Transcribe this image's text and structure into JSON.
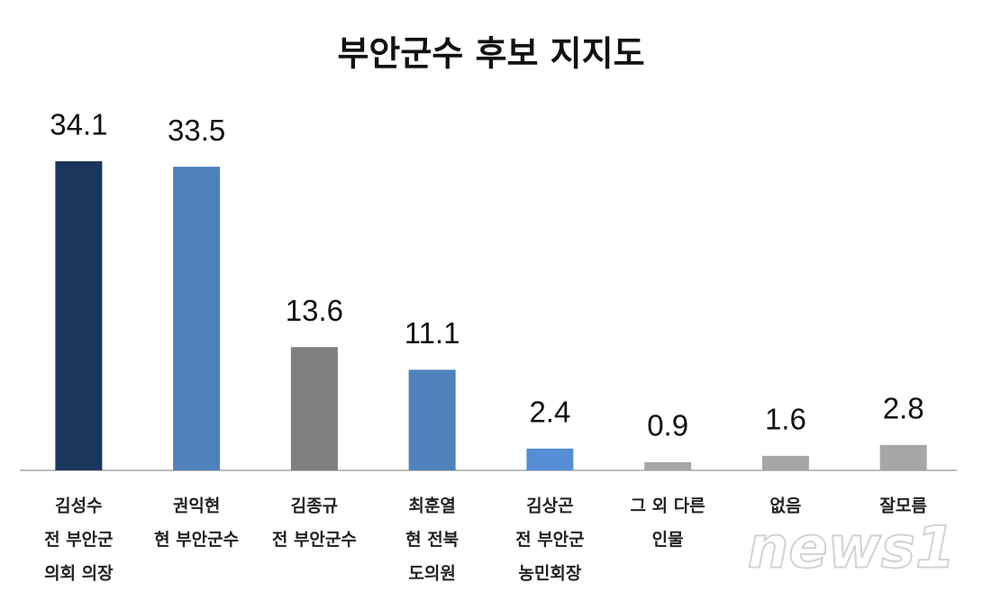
{
  "chart_data": {
    "type": "bar",
    "title": "부안군수 후보 지지도",
    "categories": [
      [
        "김성수",
        "전 부안군",
        "의회 의장"
      ],
      [
        "권익현",
        "현 부안군수"
      ],
      [
        "김종규",
        "전 부안군수"
      ],
      [
        "최훈열",
        "현 전북",
        "도의원"
      ],
      [
        "김상곤",
        "전 부안군",
        "농민회장"
      ],
      [
        "그 외 다른",
        "인물"
      ],
      [
        "없음"
      ],
      [
        "잘모름"
      ]
    ],
    "values": [
      34.1,
      33.5,
      13.6,
      11.1,
      2.4,
      0.9,
      1.6,
      2.8
    ],
    "colors": [
      "#1b365d",
      "#4f81bd",
      "#7f7f7f",
      "#4f81bd",
      "#558ed5",
      "#a6a6a6",
      "#a6a6a6",
      "#a6a6a6"
    ],
    "watermark": "news1"
  }
}
